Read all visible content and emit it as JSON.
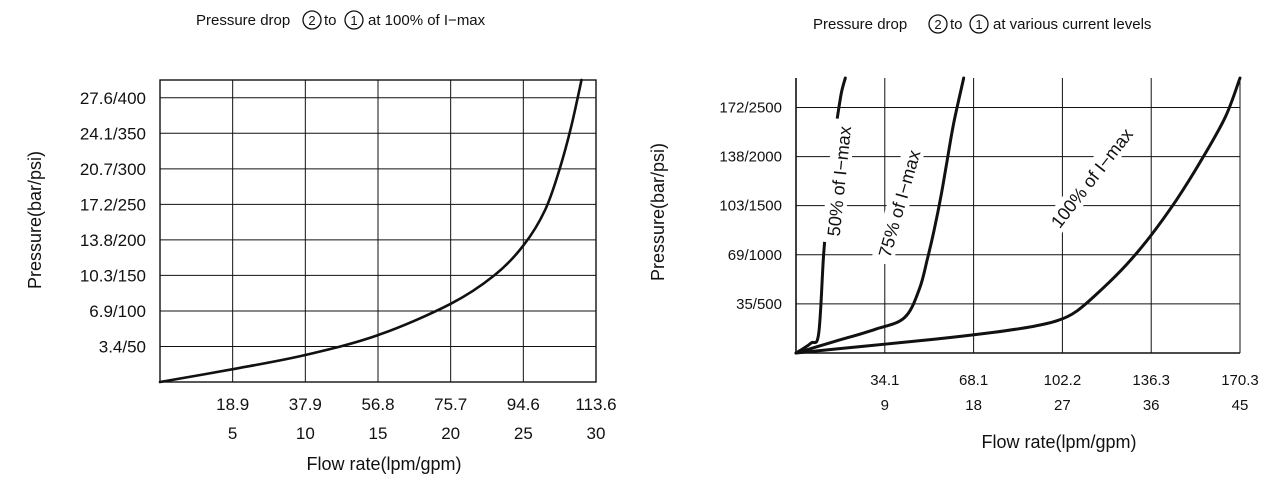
{
  "chart_data": [
    {
      "type": "line",
      "title": {
        "before": "Pressure drop",
        "from": "2",
        "mid": "to",
        "to": "1",
        "after": "at 100% of I−max"
      },
      "xlabel": "Flow rate(lpm/gpm)",
      "ylabel": "Pressure(bar/psi)",
      "x_ticks_lpm": [
        "18.9",
        "37.9",
        "56.8",
        "75.7",
        "94.6",
        "113.6"
      ],
      "x_ticks_gpm": [
        "5",
        "10",
        "15",
        "20",
        "25",
        "30"
      ],
      "y_ticks": [
        "3.4/50",
        "6.9/100",
        "10.3/150",
        "13.8/200",
        "17.2/250",
        "20.7/300",
        "24.1/350",
        "27.6/400"
      ],
      "xlim_gpm": [
        0,
        30
      ],
      "ylim_psi": [
        0,
        425
      ],
      "grid": true,
      "series": [
        {
          "x_gpm": [
            0,
            5,
            10,
            15,
            20,
            23,
            25,
            26.5,
            27.5,
            28.3,
            29.0
          ],
          "y_psi": [
            0,
            18,
            38,
            66,
            110,
            150,
            192,
            242,
            300,
            360,
            425
          ]
        }
      ]
    },
    {
      "type": "line",
      "title": {
        "before": "Pressure drop",
        "from": "2",
        "mid": "to",
        "to": "1",
        "after": "at various current levels"
      },
      "xlabel": "Flow rate(lpm/gpm)",
      "ylabel": "Pressure(bar/psi)",
      "x_ticks_lpm": [
        "34.1",
        "68.1",
        "102.2",
        "136.3",
        "170.3"
      ],
      "x_ticks_gpm": [
        "9",
        "18",
        "27",
        "36",
        "45"
      ],
      "y_ticks": [
        "35/500",
        "69/1000",
        "103/1500",
        "138/2000",
        "172/2500"
      ],
      "xlim_gpm": [
        0,
        45
      ],
      "ylim_psi": [
        0,
        2800
      ],
      "grid": true,
      "series": [
        {
          "name": "50% of I−max",
          "x_gpm": [
            0,
            1.5,
            2.3,
            2.8,
            3.3,
            3.8,
            4.2,
            4.6,
            5.0
          ],
          "y_psi": [
            0,
            100,
            200,
            1000,
            1600,
            2100,
            2400,
            2650,
            2800
          ]
        },
        {
          "name": "75% of I−max",
          "x_gpm": [
            0,
            4,
            8,
            11,
            12.5,
            13.3,
            14.0,
            14.7,
            15.3,
            16.0,
            17.0
          ],
          "y_psi": [
            0,
            120,
            240,
            360,
            650,
            950,
            1250,
            1600,
            1950,
            2350,
            2800
          ]
        },
        {
          "name": "100% of I−max",
          "x_gpm": [
            0,
            7,
            14,
            20,
            24,
            26.5,
            28.5,
            31,
            33.5,
            36,
            38.5,
            41,
            43.5,
            45
          ],
          "y_psi": [
            0,
            70,
            140,
            210,
            270,
            330,
            430,
            650,
            900,
            1200,
            1550,
            1950,
            2400,
            2800
          ]
        }
      ]
    }
  ]
}
